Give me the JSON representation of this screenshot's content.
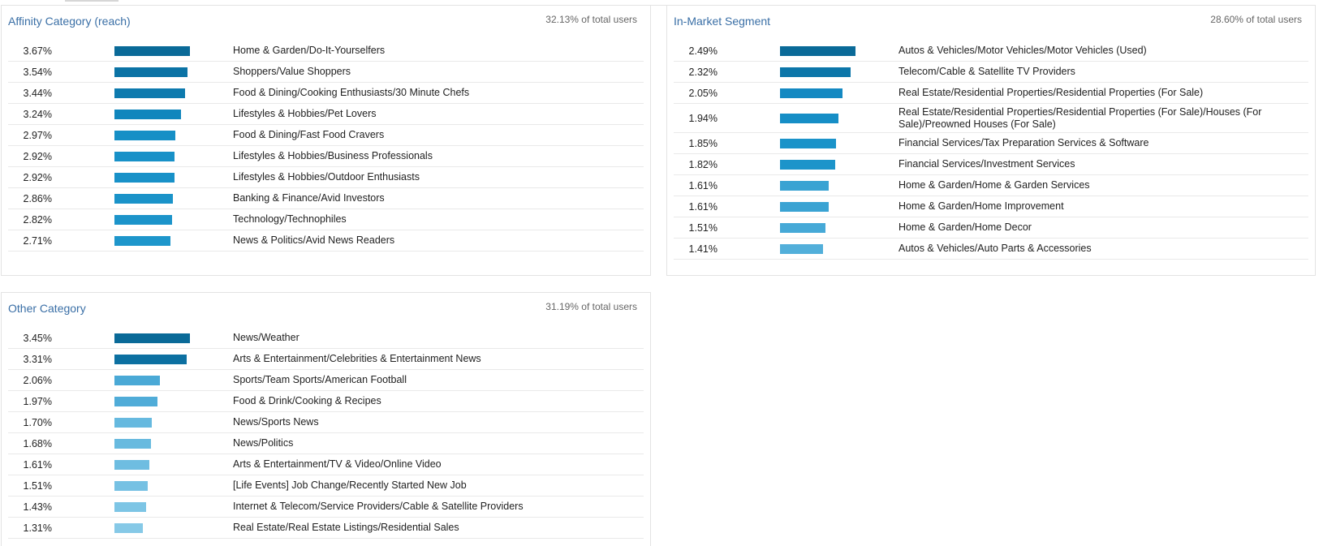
{
  "panels": [
    {
      "id": "affinity",
      "title": "Affinity Category (reach)",
      "total": "32.13% of total users",
      "rows": [
        {
          "pct": "3.67%",
          "value": 3.67,
          "label": "Home & Garden/Do-It-Yourselfers",
          "color": "#0a6a98"
        },
        {
          "pct": "3.54%",
          "value": 3.54,
          "label": "Shoppers/Value Shoppers",
          "color": "#0b73a5"
        },
        {
          "pct": "3.44%",
          "value": 3.44,
          "label": "Food & Dining/Cooking Enthusiasts/30 Minute Chefs",
          "color": "#0d7aae"
        },
        {
          "pct": "3.24%",
          "value": 3.24,
          "label": "Lifestyles & Hobbies/Pet Lovers",
          "color": "#1086bd"
        },
        {
          "pct": "2.97%",
          "value": 2.97,
          "label": "Food & Dining/Fast Food Cravers",
          "color": "#168fc6"
        },
        {
          "pct": "2.92%",
          "value": 2.92,
          "label": "Lifestyles & Hobbies/Business Professionals",
          "color": "#1891c8"
        },
        {
          "pct": "2.92%",
          "value": 2.92,
          "label": "Lifestyles & Hobbies/Outdoor Enthusiasts",
          "color": "#1891c8"
        },
        {
          "pct": "2.86%",
          "value": 2.86,
          "label": "Banking & Finance/Avid Investors",
          "color": "#1a93c9"
        },
        {
          "pct": "2.82%",
          "value": 2.82,
          "label": "Technology/Technophiles",
          "color": "#1c94ca"
        },
        {
          "pct": "2.71%",
          "value": 2.71,
          "label": "News & Politics/Avid News Readers",
          "color": "#1e96cb"
        }
      ]
    },
    {
      "id": "inmarket",
      "title": "In-Market Segment",
      "total": "28.60% of total users",
      "rows": [
        {
          "pct": "2.49%",
          "value": 2.49,
          "label": "Autos & Vehicles/Motor Vehicles/Motor Vehicles (Used)",
          "color": "#0a6a98"
        },
        {
          "pct": "2.32%",
          "value": 2.32,
          "label": "Telecom/Cable & Satellite TV Providers",
          "color": "#0c76a9"
        },
        {
          "pct": "2.05%",
          "value": 2.05,
          "label": "Real Estate/Residential Properties/Residential Properties (For Sale)",
          "color": "#1489c2"
        },
        {
          "pct": "1.94%",
          "value": 1.94,
          "label": "Real Estate/Residential Properties/Residential Properties (For Sale)/Houses (For Sale)/Preowned Houses (For Sale)",
          "color": "#168ec6",
          "tall": true
        },
        {
          "pct": "1.85%",
          "value": 1.85,
          "label": "Financial Services/Tax Preparation Services & Software",
          "color": "#1a93c9"
        },
        {
          "pct": "1.82%",
          "value": 1.82,
          "label": "Financial Services/Investment Services",
          "color": "#1c94ca"
        },
        {
          "pct": "1.61%",
          "value": 1.61,
          "label": "Home & Garden/Home & Garden Services",
          "color": "#3aa3d3"
        },
        {
          "pct": "1.61%",
          "value": 1.61,
          "label": "Home & Garden/Home Improvement",
          "color": "#3aa3d3"
        },
        {
          "pct": "1.51%",
          "value": 1.51,
          "label": "Home & Garden/Home Decor",
          "color": "#46a9d7"
        },
        {
          "pct": "1.41%",
          "value": 1.41,
          "label": "Autos & Vehicles/Auto Parts & Accessories",
          "color": "#52afda"
        }
      ]
    },
    {
      "id": "other",
      "title": "Other Category",
      "total": "31.19% of total users",
      "rows": [
        {
          "pct": "3.45%",
          "value": 3.45,
          "label": "News/Weather",
          "color": "#0a6a98"
        },
        {
          "pct": "3.31%",
          "value": 3.31,
          "label": "Arts & Entertainment/Celebrities & Entertainment News",
          "color": "#0c70a1"
        },
        {
          "pct": "2.06%",
          "value": 2.06,
          "label": "Sports/Team Sports/American Football",
          "color": "#4aa9d6"
        },
        {
          "pct": "1.97%",
          "value": 1.97,
          "label": "Food & Drink/Cooking & Recipes",
          "color": "#50acd8"
        },
        {
          "pct": "1.70%",
          "value": 1.7,
          "label": "News/Sports News",
          "color": "#66b9df"
        },
        {
          "pct": "1.68%",
          "value": 1.68,
          "label": "News/Politics",
          "color": "#68badf"
        },
        {
          "pct": "1.61%",
          "value": 1.61,
          "label": "Arts & Entertainment/TV & Video/Online Video",
          "color": "#6ebde1"
        },
        {
          "pct": "1.51%",
          "value": 1.51,
          "label": "[Life Events] Job Change/Recently Started New Job",
          "color": "#76c1e3"
        },
        {
          "pct": "1.43%",
          "value": 1.43,
          "label": "Internet & Telecom/Service Providers/Cable & Satellite Providers",
          "color": "#7dc5e5"
        },
        {
          "pct": "1.31%",
          "value": 1.31,
          "label": "Real Estate/Real Estate Listings/Residential Sales",
          "color": "#86c9e7"
        }
      ]
    }
  ]
}
